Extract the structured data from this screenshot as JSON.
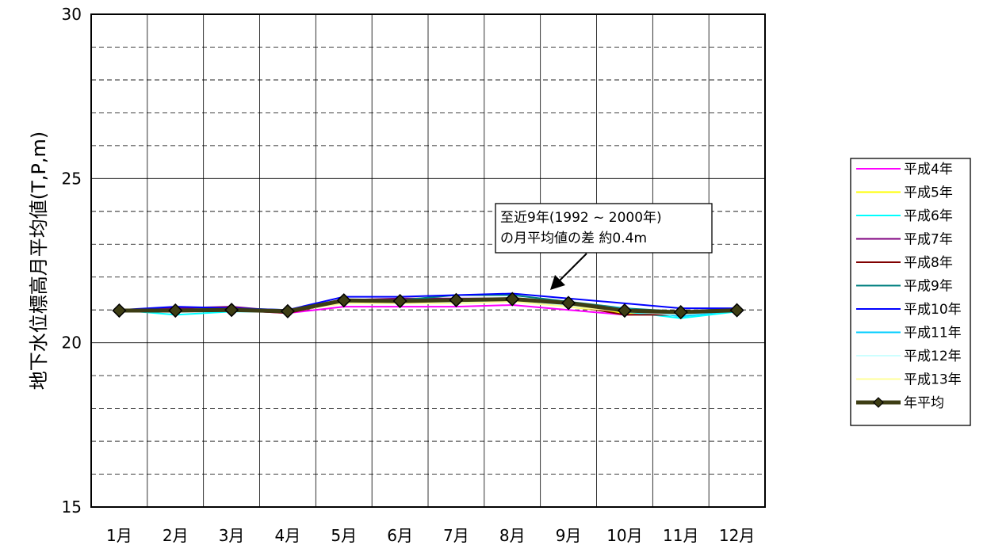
{
  "chart_data": {
    "type": "line",
    "title": "",
    "xlabel": "",
    "ylabel": "地下水位標高月平均値(T,P,m)",
    "ylim": [
      15,
      30
    ],
    "yticks": [
      15,
      20,
      25,
      30
    ],
    "grid": true,
    "legend_position": "right",
    "categories": [
      "1月",
      "2月",
      "3月",
      "4月",
      "5月",
      "6月",
      "7月",
      "8月",
      "9月",
      "10月",
      "11月",
      "12月"
    ],
    "series": [
      {
        "name": "平成4年",
        "color": "#ff00ff",
        "values": [
          21.0,
          21.0,
          21.0,
          20.9,
          21.1,
          21.1,
          21.1,
          21.15,
          21.0,
          20.85,
          20.9,
          21.0
        ]
      },
      {
        "name": "平成5年",
        "color": "#ffff00",
        "values": [
          21.0,
          21.0,
          21.0,
          20.95,
          21.2,
          21.2,
          21.25,
          21.3,
          21.1,
          20.9,
          20.9,
          21.0
        ]
      },
      {
        "name": "平成6年",
        "color": "#00ffff",
        "values": [
          21.0,
          20.85,
          20.95,
          20.95,
          21.25,
          21.25,
          21.25,
          21.3,
          21.15,
          20.95,
          20.75,
          20.95
        ]
      },
      {
        "name": "平成7年",
        "color": "#800080",
        "values": [
          21.0,
          21.05,
          21.1,
          20.95,
          21.3,
          21.35,
          21.35,
          21.35,
          21.2,
          20.95,
          20.9,
          21.0
        ]
      },
      {
        "name": "平成8年",
        "color": "#800000",
        "values": [
          21.0,
          21.0,
          21.0,
          20.9,
          21.25,
          21.3,
          21.3,
          21.35,
          21.15,
          20.85,
          20.85,
          21.0
        ]
      },
      {
        "name": "平成9年",
        "color": "#008080",
        "values": [
          21.0,
          21.0,
          21.05,
          21.0,
          21.3,
          21.3,
          21.45,
          21.45,
          21.25,
          21.05,
          20.95,
          21.05
        ]
      },
      {
        "name": "平成10年",
        "color": "#0000ff",
        "values": [
          21.0,
          21.1,
          21.05,
          21.0,
          21.4,
          21.4,
          21.45,
          21.5,
          21.35,
          21.2,
          21.05,
          21.05
        ]
      },
      {
        "name": "平成11年",
        "color": "#00ccff",
        "values": [
          21.0,
          20.95,
          21.0,
          20.95,
          21.3,
          21.25,
          21.3,
          21.35,
          21.2,
          21.05,
          20.8,
          21.0
        ]
      },
      {
        "name": "平成12年",
        "color": "#ccffff",
        "values": [
          21.0,
          21.0,
          21.0,
          20.95,
          21.2,
          21.2,
          21.25,
          21.3,
          21.15,
          20.95,
          20.85,
          21.0
        ]
      },
      {
        "name": "平成13年",
        "color": "#ffff99",
        "values": [
          21.0,
          21.0,
          21.0,
          20.95,
          21.2,
          21.2,
          21.2,
          21.25,
          21.1,
          20.95,
          20.9,
          21.0
        ]
      },
      {
        "name": "年平均",
        "color": "#3d3d14",
        "marker": "diamond",
        "values": [
          20.98,
          20.98,
          21.0,
          20.96,
          21.29,
          21.27,
          21.3,
          21.33,
          21.21,
          20.98,
          20.93,
          20.99
        ]
      }
    ],
    "annotation": {
      "lines": [
        "至近9年(1992 ~ 2000年)",
        "の月平均値の差  約0.4m"
      ]
    }
  }
}
